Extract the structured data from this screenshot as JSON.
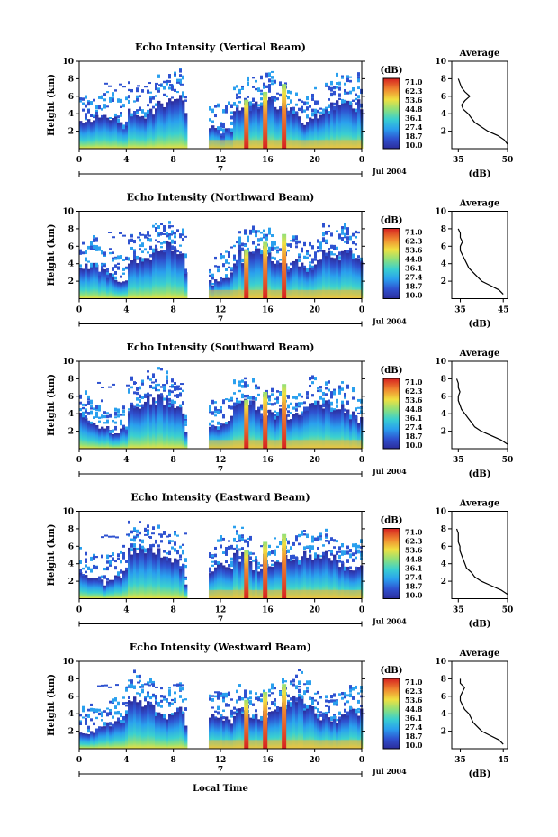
{
  "figure": {
    "xlabel": "Local Time",
    "colorbar_unit": "(dB)",
    "colorbar_ticks": [
      "71.0",
      "62.3",
      "53.6",
      "44.8",
      "36.1",
      "27.4",
      "18.7",
      "10.0"
    ],
    "date_label": "Jul 2004",
    "day_marker": "7",
    "avg_title": "Average",
    "avg_xlabel": "(dB)",
    "colors": {
      "low": "#2c2c9c",
      "mid": "#3ad0d0",
      "high": "#e02a2a",
      "peak": "#a00000"
    }
  },
  "chart_data": [
    {
      "type": "heatmap",
      "title": "Echo Intensity (Vertical Beam)",
      "ylabel": "Height (km)",
      "x_ticks": [
        "0",
        "4",
        "8",
        "12",
        "16",
        "20",
        "0"
      ],
      "y_ticks": [
        "2",
        "4",
        "6",
        "8",
        "10"
      ],
      "xlim": [
        0,
        24
      ],
      "ylim": [
        0,
        10
      ],
      "zlim": [
        10,
        71
      ],
      "data_gap_hours": [
        9,
        11
      ],
      "plume_hours": [
        14.2,
        15.8,
        17.4
      ],
      "average": {
        "x_ticks": [
          "35",
          "50"
        ],
        "xlim": [
          33,
          50
        ],
        "height": [
          0.5,
          1,
          1.5,
          2,
          2.5,
          3,
          3.5,
          4,
          4.5,
          5,
          5.5,
          6,
          6.5,
          7,
          7.5,
          8
        ],
        "db": [
          50,
          49,
          47,
          44,
          42,
          40,
          39,
          38,
          36.5,
          36,
          37,
          38.5,
          37,
          36,
          35.5,
          35
        ]
      }
    },
    {
      "type": "heatmap",
      "title": "Echo Intensity (Northward Beam)",
      "ylabel": "Height (km)",
      "x_ticks": [
        "0",
        "4",
        "8",
        "12",
        "16",
        "20",
        "0"
      ],
      "y_ticks": [
        "2",
        "4",
        "6",
        "8",
        "10"
      ],
      "xlim": [
        0,
        24
      ],
      "ylim": [
        0,
        10
      ],
      "zlim": [
        10,
        71
      ],
      "data_gap_hours": [
        9,
        11
      ],
      "plume_hours": [
        14.2,
        15.8,
        17.4
      ],
      "average": {
        "x_ticks": [
          "35",
          "45"
        ],
        "xlim": [
          33,
          46
        ],
        "height": [
          0.5,
          1,
          1.5,
          2,
          2.5,
          3,
          3.5,
          4,
          4.5,
          5,
          5.5,
          6,
          6.5,
          7,
          7.5,
          8
        ],
        "db": [
          45,
          44,
          42,
          40,
          39,
          38,
          37,
          36.5,
          36,
          35.5,
          35,
          35,
          35.5,
          35,
          35,
          34.5
        ]
      }
    },
    {
      "type": "heatmap",
      "title": "Echo Intensity (Southward Beam)",
      "ylabel": "Height (km)",
      "x_ticks": [
        "0",
        "4",
        "8",
        "12",
        "16",
        "20",
        "0"
      ],
      "y_ticks": [
        "2",
        "4",
        "6",
        "8",
        "10"
      ],
      "xlim": [
        0,
        24
      ],
      "ylim": [
        0,
        10
      ],
      "zlim": [
        10,
        71
      ],
      "data_gap_hours": [
        9,
        11
      ],
      "plume_hours": [
        14.2,
        15.8,
        17.4
      ],
      "average": {
        "x_ticks": [
          "35",
          "50"
        ],
        "xlim": [
          33,
          50
        ],
        "height": [
          0.5,
          1,
          1.5,
          2,
          2.5,
          3,
          3.5,
          4,
          4.5,
          5,
          5.5,
          6,
          6.5,
          7,
          7.5,
          8
        ],
        "db": [
          50,
          48,
          45,
          42,
          40,
          39,
          38,
          37,
          36,
          35.5,
          35,
          35,
          35.5,
          35,
          35,
          34.5
        ]
      }
    },
    {
      "type": "heatmap",
      "title": "Echo Intensity (Eastward Beam)",
      "ylabel": "Height (km)",
      "x_ticks": [
        "0",
        "4",
        "8",
        "12",
        "16",
        "20",
        "0"
      ],
      "y_ticks": [
        "2",
        "4",
        "6",
        "8",
        "10"
      ],
      "xlim": [
        0,
        24
      ],
      "ylim": [
        0,
        10
      ],
      "zlim": [
        10,
        71
      ],
      "data_gap_hours": [
        9,
        11
      ],
      "plume_hours": [
        14.2,
        15.8,
        17.4
      ],
      "average": {
        "x_ticks": [
          "35",
          "50"
        ],
        "xlim": [
          33,
          50
        ],
        "height": [
          0.5,
          1,
          1.5,
          2,
          2.5,
          3,
          3.5,
          4,
          4.5,
          5,
          5.5,
          6,
          6.5,
          7,
          7.5,
          8
        ],
        "db": [
          50,
          48,
          45,
          42,
          40,
          39,
          37.5,
          37,
          36.5,
          36,
          35.5,
          35.5,
          35,
          35,
          35,
          34.5
        ]
      }
    },
    {
      "type": "heatmap",
      "title": "Echo Intensity (Westward Beam)",
      "ylabel": "Height (km)",
      "x_ticks": [
        "0",
        "4",
        "8",
        "12",
        "16",
        "20",
        "0"
      ],
      "y_ticks": [
        "2",
        "4",
        "6",
        "8",
        "10"
      ],
      "xlim": [
        0,
        24
      ],
      "ylim": [
        0,
        10
      ],
      "zlim": [
        10,
        71
      ],
      "data_gap_hours": [
        9,
        11
      ],
      "plume_hours": [
        14.2,
        15.8,
        17.4
      ],
      "average": {
        "x_ticks": [
          "35",
          "45"
        ],
        "xlim": [
          33,
          46
        ],
        "height": [
          0.5,
          1,
          1.5,
          2,
          2.5,
          3,
          3.5,
          4,
          4.5,
          5,
          5.5,
          6,
          6.5,
          7,
          7.5,
          8
        ],
        "db": [
          45,
          44,
          42,
          40,
          39,
          38,
          37.5,
          37,
          36,
          35.5,
          35,
          35,
          35.5,
          36,
          35,
          35
        ]
      }
    }
  ]
}
